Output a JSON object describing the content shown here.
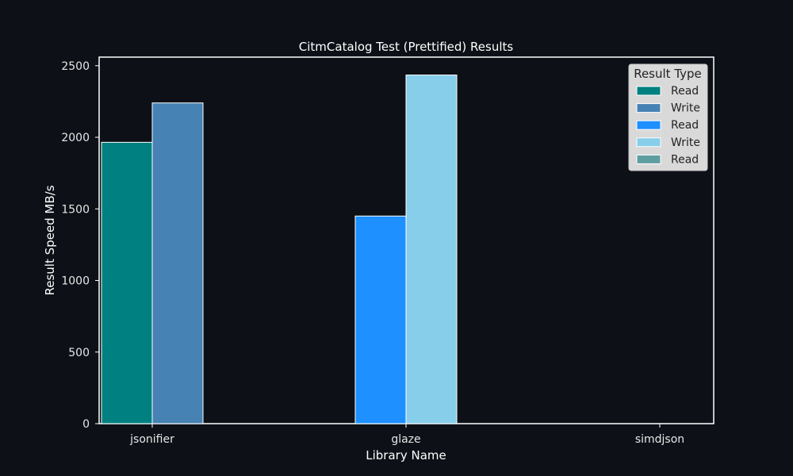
{
  "colors": {
    "background": "#0d1117",
    "axes_frame": "#ffffff",
    "text": "#ffffff",
    "tick_text": "#e6e6e6",
    "bar_edge": "#ffffff",
    "legend_bg": "#d9d9d9",
    "legend_text": "#222222"
  },
  "chart_data": {
    "type": "bar",
    "title": "CitmCatalog Test (Prettified) Results",
    "xlabel": "Library Name",
    "ylabel": "Result Speed MB/s",
    "categories": [
      "jsonifier",
      "glaze",
      "simdjson"
    ],
    "ylim": [
      0,
      2560
    ],
    "yticks": [
      0,
      500,
      1000,
      1500,
      2000,
      2500
    ],
    "grid": false,
    "legend": {
      "title": "Result Type",
      "placement": "top-right",
      "entries": [
        {
          "label": "Read",
          "color": "#008080"
        },
        {
          "label": "Write",
          "color": "#4682b4"
        },
        {
          "label": "Read",
          "color": "#1e90ff"
        },
        {
          "label": "Write",
          "color": "#87ceeb"
        },
        {
          "label": "Read",
          "color": "#5f9ea0"
        }
      ]
    },
    "bars": [
      {
        "category": "jsonifier",
        "type": "Read",
        "value": 1965,
        "color": "#008080"
      },
      {
        "category": "jsonifier",
        "type": "Write",
        "value": 2240,
        "color": "#4682b4"
      },
      {
        "category": "glaze",
        "type": "Read",
        "value": 1450,
        "color": "#1e90ff"
      },
      {
        "category": "glaze",
        "type": "Write",
        "value": 2435,
        "color": "#87ceeb"
      }
    ]
  }
}
